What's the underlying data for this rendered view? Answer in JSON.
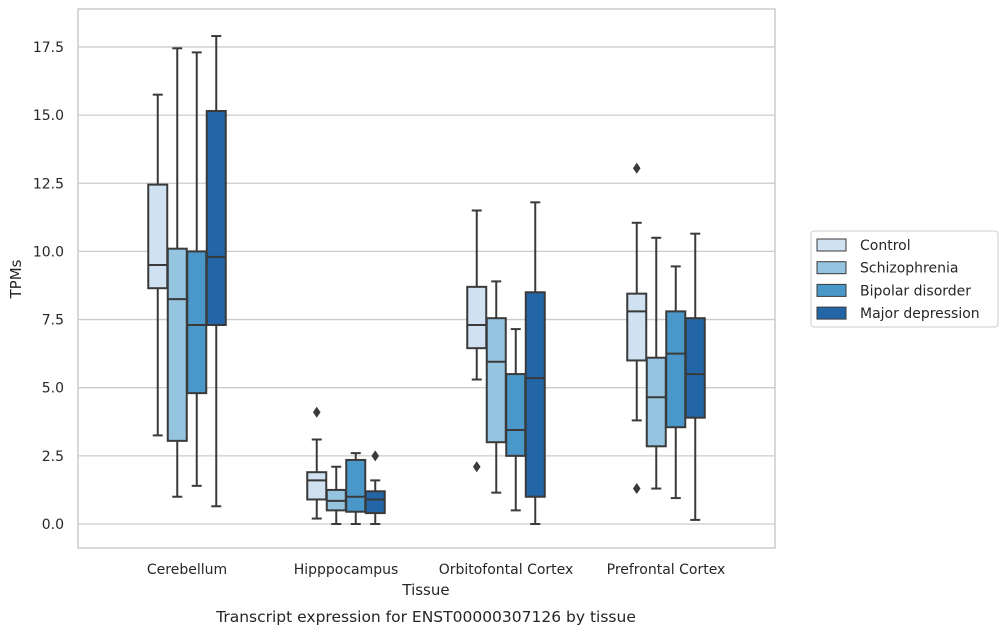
{
  "chart_data": {
    "type": "box",
    "caption": "Transcript expression for ENST00000307126 by tissue",
    "xlabel": "Tissue",
    "ylabel": "TPMs",
    "ylim": [
      -0.85,
      18.8
    ],
    "yticks": [
      "0.0",
      "2.5",
      "5.0",
      "7.5",
      "10.0",
      "12.5",
      "15.0",
      "17.5"
    ],
    "grid": true,
    "legend_position": "right",
    "categories": [
      "Cerebellum",
      "Hipppocampus",
      "Orbitofontal Cortex",
      "Prefrontal Cortex"
    ],
    "series": [
      {
        "name": "Control",
        "color": "#d0e1f2",
        "boxes": [
          {
            "whislo": 3.25,
            "q1": 8.65,
            "med": 9.5,
            "q3": 12.45,
            "whishi": 15.75,
            "fliers": []
          },
          {
            "whislo": 0.2,
            "q1": 0.9,
            "med": 1.6,
            "q3": 1.9,
            "whishi": 3.1,
            "fliers": [
              4.1
            ]
          },
          {
            "whislo": 5.3,
            "q1": 6.45,
            "med": 7.3,
            "q3": 8.7,
            "whishi": 11.5,
            "fliers": [
              2.1
            ]
          },
          {
            "whislo": 3.8,
            "q1": 6.0,
            "med": 7.8,
            "q3": 8.45,
            "whishi": 11.05,
            "fliers": [
              13.05,
              1.3
            ]
          }
        ]
      },
      {
        "name": "Schizophrenia",
        "color": "#94c4df",
        "boxes": [
          {
            "whislo": 1.0,
            "q1": 3.05,
            "med": 8.25,
            "q3": 10.1,
            "whishi": 17.45,
            "fliers": []
          },
          {
            "whislo": 0.0,
            "q1": 0.5,
            "med": 0.85,
            "q3": 1.25,
            "whishi": 2.1,
            "fliers": []
          },
          {
            "whislo": 1.15,
            "q1": 3.0,
            "med": 5.95,
            "q3": 7.55,
            "whishi": 8.9,
            "fliers": []
          },
          {
            "whislo": 1.3,
            "q1": 2.85,
            "med": 4.65,
            "q3": 6.1,
            "whishi": 10.5,
            "fliers": []
          }
        ]
      },
      {
        "name": "Bipolar disorder",
        "color": "#4a98c9",
        "boxes": [
          {
            "whislo": 1.4,
            "q1": 4.8,
            "med": 7.3,
            "q3": 10.0,
            "whishi": 17.3,
            "fliers": []
          },
          {
            "whislo": 0.0,
            "q1": 0.45,
            "med": 1.0,
            "q3": 2.35,
            "whishi": 2.6,
            "fliers": []
          },
          {
            "whislo": 0.5,
            "q1": 2.5,
            "med": 3.45,
            "q3": 5.5,
            "whishi": 7.15,
            "fliers": []
          },
          {
            "whislo": 0.95,
            "q1": 3.55,
            "med": 6.25,
            "q3": 7.8,
            "whishi": 9.45,
            "fliers": []
          }
        ]
      },
      {
        "name": "Major depression",
        "color": "#2366a8",
        "boxes": [
          {
            "whislo": 0.65,
            "q1": 7.3,
            "med": 9.8,
            "q3": 15.15,
            "whishi": 17.9,
            "fliers": []
          },
          {
            "whislo": 0.0,
            "q1": 0.4,
            "med": 0.9,
            "q3": 1.2,
            "whishi": 1.6,
            "fliers": [
              2.5
            ]
          },
          {
            "whislo": 0.0,
            "q1": 1.0,
            "med": 5.35,
            "q3": 8.5,
            "whishi": 11.8,
            "fliers": []
          },
          {
            "whislo": 0.15,
            "q1": 3.9,
            "med": 5.5,
            "q3": 7.55,
            "whishi": 10.65,
            "fliers": []
          }
        ]
      }
    ]
  }
}
